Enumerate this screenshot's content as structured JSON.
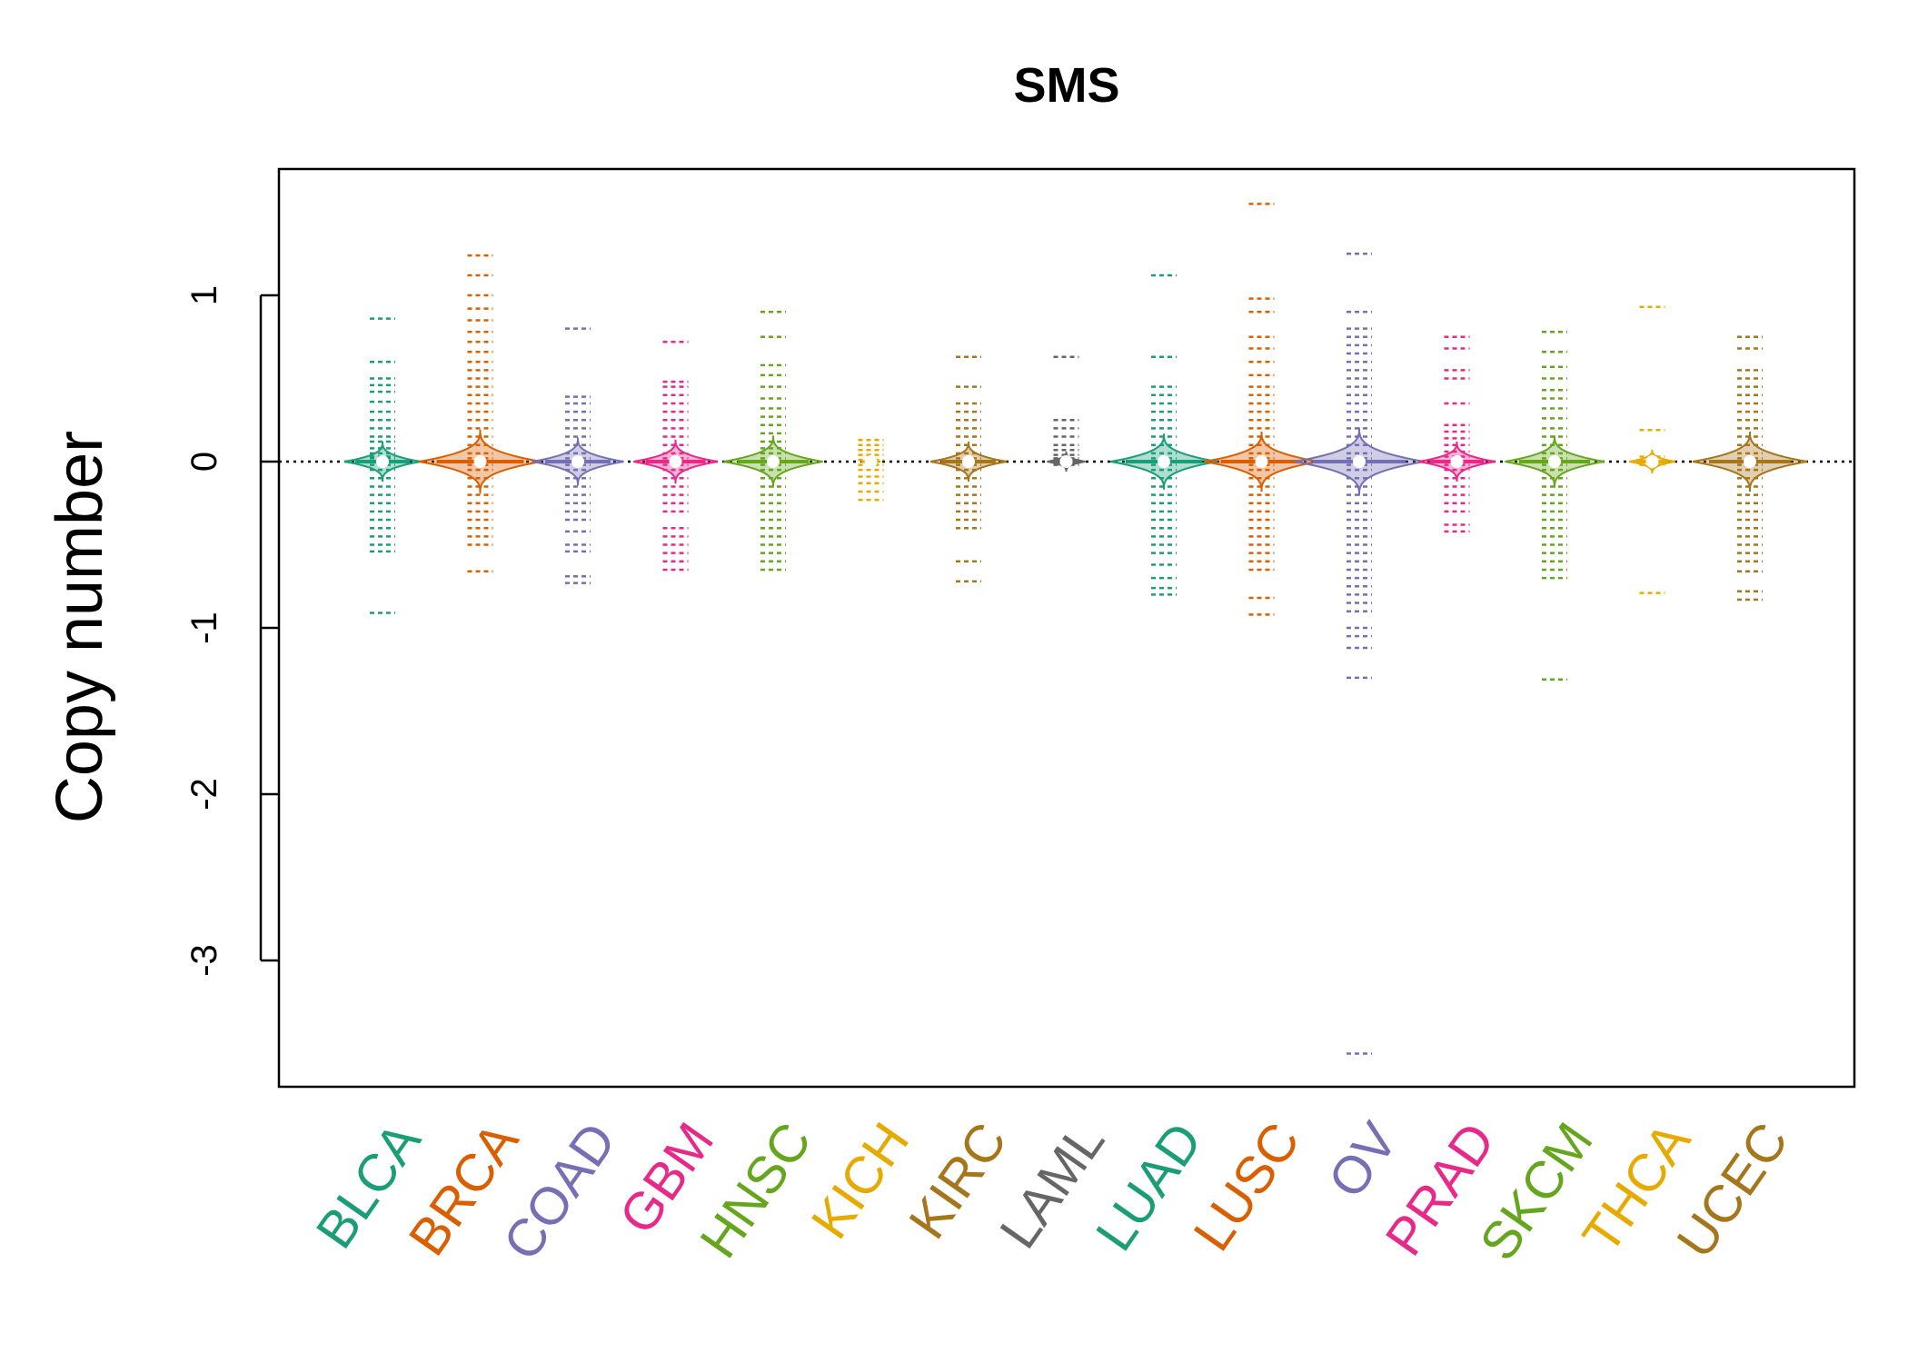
{
  "chart_data": {
    "type": "beanplot",
    "title": "SMS",
    "xlabel": "",
    "ylabel": "Copy number",
    "ylim": [
      -3.7,
      1.8
    ],
    "yticks": [
      1,
      0,
      -1,
      -2,
      -3
    ],
    "reference_line": 0,
    "grid": false,
    "categories": [
      {
        "name": "BLCA",
        "color": "#1B9E77",
        "density": 1.0,
        "values": [
          0.86,
          0.6,
          0.5,
          0.46,
          0.42,
          0.36,
          0.3,
          0.25,
          0.2,
          0.15,
          0.12,
          0.08,
          0.05,
          0.03,
          0.02,
          -0.02,
          -0.05,
          -0.1,
          -0.15,
          -0.2,
          -0.25,
          -0.3,
          -0.35,
          -0.4,
          -0.45,
          -0.5,
          -0.54,
          -0.91
        ]
      },
      {
        "name": "BRCA",
        "color": "#D95F02",
        "density": 1.6,
        "values": [
          1.24,
          1.12,
          1.0,
          0.92,
          0.85,
          0.78,
          0.72,
          0.66,
          0.6,
          0.55,
          0.5,
          0.45,
          0.4,
          0.35,
          0.3,
          0.25,
          0.2,
          0.15,
          0.1,
          0.05,
          0.02,
          -0.02,
          -0.05,
          -0.1,
          -0.15,
          -0.2,
          -0.25,
          -0.3,
          -0.35,
          -0.4,
          -0.45,
          -0.5,
          -0.66
        ]
      },
      {
        "name": "COAD",
        "color": "#7570B3",
        "density": 1.2,
        "values": [
          0.8,
          0.39,
          0.35,
          0.3,
          0.25,
          0.2,
          0.15,
          0.1,
          0.05,
          0.02,
          -0.02,
          -0.05,
          -0.1,
          -0.15,
          -0.2,
          -0.25,
          -0.3,
          -0.35,
          -0.42,
          -0.5,
          -0.54,
          -0.69,
          -0.73
        ]
      },
      {
        "name": "GBM",
        "color": "#E7298A",
        "density": 1.1,
        "values": [
          0.72,
          0.48,
          0.45,
          0.4,
          0.35,
          0.3,
          0.25,
          0.2,
          0.15,
          0.1,
          0.05,
          0.02,
          -0.02,
          -0.05,
          -0.1,
          -0.15,
          -0.2,
          -0.25,
          -0.3,
          -0.4,
          -0.45,
          -0.5,
          -0.55,
          -0.6,
          -0.65
        ]
      },
      {
        "name": "HNSC",
        "color": "#66A61E",
        "density": 1.3,
        "values": [
          0.9,
          0.75,
          0.58,
          0.52,
          0.45,
          0.38,
          0.32,
          0.27,
          0.22,
          0.17,
          0.12,
          0.08,
          0.05,
          0.02,
          -0.02,
          -0.05,
          -0.1,
          -0.15,
          -0.2,
          -0.25,
          -0.3,
          -0.35,
          -0.4,
          -0.45,
          -0.5,
          -0.55,
          -0.6,
          -0.65
        ]
      },
      {
        "name": "KICH",
        "color": "#E6AB02",
        "density": 0.25,
        "values": [
          0.13,
          0.1,
          0.07,
          0.04,
          0.01,
          -0.02,
          -0.05,
          -0.09,
          -0.13,
          -0.18,
          -0.23
        ]
      },
      {
        "name": "KIRC",
        "color": "#A6761D",
        "density": 1.0,
        "values": [
          0.63,
          0.45,
          0.35,
          0.3,
          0.25,
          0.2,
          0.15,
          0.1,
          0.05,
          0.02,
          -0.02,
          -0.05,
          -0.1,
          -0.15,
          -0.2,
          -0.25,
          -0.3,
          -0.35,
          -0.4,
          -0.6,
          -0.72
        ]
      },
      {
        "name": "LAML",
        "color": "#666666",
        "density": 0.5,
        "values": [
          0.63,
          0.25,
          0.2,
          0.15,
          0.1,
          0.07,
          0.04,
          0.02,
          -0.02
        ]
      },
      {
        "name": "LUAD",
        "color": "#1B9E77",
        "density": 1.4,
        "values": [
          1.12,
          0.63,
          0.45,
          0.4,
          0.35,
          0.3,
          0.25,
          0.2,
          0.15,
          0.1,
          0.05,
          0.02,
          -0.02,
          -0.05,
          -0.1,
          -0.15,
          -0.2,
          -0.25,
          -0.3,
          -0.35,
          -0.4,
          -0.45,
          -0.5,
          -0.55,
          -0.62,
          -0.7,
          -0.76,
          -0.8
        ]
      },
      {
        "name": "LUSC",
        "color": "#D95F02",
        "density": 1.5,
        "values": [
          1.55,
          0.98,
          0.9,
          0.75,
          0.68,
          0.6,
          0.52,
          0.45,
          0.4,
          0.35,
          0.3,
          0.25,
          0.2,
          0.15,
          0.1,
          0.05,
          0.02,
          -0.02,
          -0.05,
          -0.1,
          -0.15,
          -0.2,
          -0.25,
          -0.3,
          -0.35,
          -0.4,
          -0.45,
          -0.5,
          -0.55,
          -0.6,
          -0.65,
          -0.82,
          -0.92
        ]
      },
      {
        "name": "OV",
        "color": "#7570B3",
        "density": 1.7,
        "values": [
          1.25,
          0.9,
          0.8,
          0.75,
          0.7,
          0.65,
          0.6,
          0.55,
          0.5,
          0.45,
          0.4,
          0.35,
          0.3,
          0.25,
          0.2,
          0.15,
          0.1,
          0.05,
          0.02,
          -0.02,
          -0.05,
          -0.1,
          -0.15,
          -0.2,
          -0.25,
          -0.3,
          -0.35,
          -0.4,
          -0.45,
          -0.5,
          -0.55,
          -0.6,
          -0.65,
          -0.7,
          -0.75,
          -0.8,
          -0.85,
          -0.9,
          -1.0,
          -1.05,
          -1.12,
          -1.3,
          -3.56
        ]
      },
      {
        "name": "PRAD",
        "color": "#E7298A",
        "density": 1.0,
        "values": [
          0.75,
          0.68,
          0.55,
          0.5,
          0.35,
          0.22,
          0.18,
          0.14,
          0.1,
          0.06,
          0.03,
          -0.02,
          -0.05,
          -0.1,
          -0.15,
          -0.2,
          -0.25,
          -0.3,
          -0.38,
          -0.42
        ]
      },
      {
        "name": "SKCM",
        "color": "#66A61E",
        "density": 1.3,
        "values": [
          0.78,
          0.66,
          0.57,
          0.5,
          0.43,
          0.38,
          0.32,
          0.26,
          0.2,
          0.15,
          0.1,
          0.05,
          0.02,
          -0.02,
          -0.05,
          -0.1,
          -0.15,
          -0.2,
          -0.25,
          -0.3,
          -0.35,
          -0.4,
          -0.45,
          -0.5,
          -0.55,
          -0.6,
          -0.65,
          -0.7,
          -1.31
        ]
      },
      {
        "name": "THCA",
        "color": "#E6AB02",
        "density": 0.6,
        "values": [
          0.93,
          0.19,
          0.03,
          0.0,
          -0.02,
          -0.79
        ]
      },
      {
        "name": "UCEC",
        "color": "#A6761D",
        "density": 1.5,
        "values": [
          0.75,
          0.68,
          0.55,
          0.5,
          0.45,
          0.4,
          0.35,
          0.3,
          0.25,
          0.2,
          0.15,
          0.1,
          0.05,
          0.02,
          -0.02,
          -0.05,
          -0.1,
          -0.15,
          -0.2,
          -0.25,
          -0.3,
          -0.35,
          -0.4,
          -0.45,
          -0.5,
          -0.55,
          -0.6,
          -0.66,
          -0.78,
          -0.83
        ]
      }
    ]
  }
}
